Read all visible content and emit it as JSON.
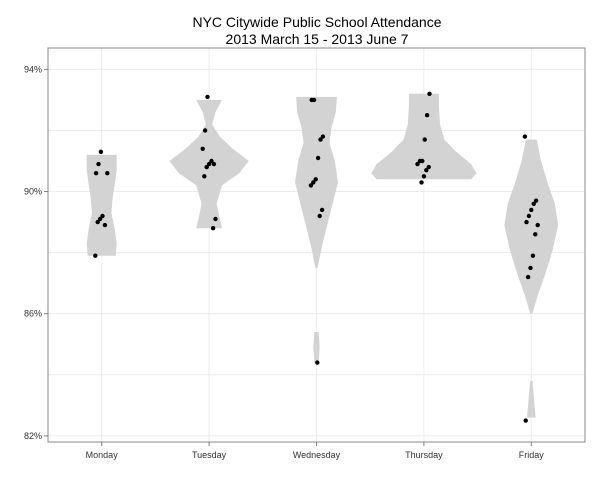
{
  "chart_data": {
    "type": "violin",
    "title": "NYC Citywide Public School Attendance",
    "subtitle": "2013 March 15 - 2013 June 7",
    "xlabel": "",
    "ylabel": "",
    "categories": [
      "Monday",
      "Tuesday",
      "Wednesday",
      "Thursday",
      "Friday"
    ],
    "y_range": [
      81.8,
      94.7
    ],
    "y_ticks": [
      82,
      86,
      90,
      94
    ],
    "y_tick_labels": [
      "82%",
      "86%",
      "90%",
      "94%"
    ],
    "grid": true,
    "colors": {
      "violin_fill": "#d3d3d3",
      "point": "#000000",
      "background": "#ffffff",
      "grid": "#ececec",
      "border": "#8a8a8a"
    },
    "violins": [
      {
        "category": "Monday",
        "profile": [
          {
            "y": 87.9,
            "w": 0.13
          },
          {
            "y": 88.3,
            "w": 0.14
          },
          {
            "y": 88.8,
            "w": 0.12
          },
          {
            "y": 89.3,
            "w": 0.09
          },
          {
            "y": 89.7,
            "w": 0.1
          },
          {
            "y": 90.2,
            "w": 0.12
          },
          {
            "y": 90.7,
            "w": 0.14
          },
          {
            "y": 91.2,
            "w": 0.14
          }
        ],
        "points": [
          87.9,
          89.0,
          89.1,
          89.2,
          88.9,
          90.6,
          90.6,
          90.9,
          91.3
        ]
      },
      {
        "category": "Tuesday",
        "profile": [
          {
            "y": 88.8,
            "w": 0.12
          },
          {
            "y": 89.1,
            "w": 0.1
          },
          {
            "y": 89.6,
            "w": 0.07
          },
          {
            "y": 90.2,
            "w": 0.12
          },
          {
            "y": 90.6,
            "w": 0.28
          },
          {
            "y": 91.0,
            "w": 0.37
          },
          {
            "y": 91.4,
            "w": 0.22
          },
          {
            "y": 91.8,
            "w": 0.1
          },
          {
            "y": 92.2,
            "w": 0.03
          },
          {
            "y": 92.6,
            "w": 0.06
          },
          {
            "y": 93.0,
            "w": 0.12
          }
        ],
        "points": [
          88.8,
          89.1,
          90.5,
          90.8,
          90.9,
          91.0,
          90.9,
          91.4,
          92.0,
          93.1
        ]
      },
      {
        "category": "Wednesday",
        "profile": [
          {
            "y": 84.4,
            "w": 0.02
          },
          {
            "y": 84.9,
            "w": 0.03
          },
          {
            "y": 85.4,
            "w": 0.02
          },
          {
            "y": null,
            "w": 0
          },
          {
            "y": 87.5,
            "w": 0.01
          },
          {
            "y": 88.2,
            "w": 0.05
          },
          {
            "y": 88.9,
            "w": 0.1
          },
          {
            "y": 89.6,
            "w": 0.15
          },
          {
            "y": 90.3,
            "w": 0.2
          },
          {
            "y": 91.0,
            "w": 0.17
          },
          {
            "y": 91.6,
            "w": 0.12
          },
          {
            "y": 92.1,
            "w": 0.14
          },
          {
            "y": 92.6,
            "w": 0.18
          },
          {
            "y": 93.1,
            "w": 0.19
          }
        ],
        "points": [
          84.4,
          89.2,
          89.4,
          90.2,
          90.3,
          90.4,
          91.1,
          91.7,
          91.8,
          93.0,
          93.0
        ]
      },
      {
        "category": "Thursday",
        "profile": [
          {
            "y": 90.4,
            "w": 0.44
          },
          {
            "y": 90.6,
            "w": 0.49
          },
          {
            "y": 90.9,
            "w": 0.44
          },
          {
            "y": 91.3,
            "w": 0.3
          },
          {
            "y": 91.7,
            "w": 0.19
          },
          {
            "y": 92.2,
            "w": 0.15
          },
          {
            "y": 92.8,
            "w": 0.14
          },
          {
            "y": 93.2,
            "w": 0.14
          }
        ],
        "points": [
          90.3,
          90.5,
          90.7,
          90.8,
          90.9,
          91.0,
          91.0,
          91.7,
          92.5,
          93.2
        ]
      },
      {
        "category": "Friday",
        "profile": [
          {
            "y": 82.6,
            "w": 0.04
          },
          {
            "y": 83.0,
            "w": 0.03
          },
          {
            "y": 83.8,
            "w": 0.01
          },
          {
            "y": null,
            "w": 0
          },
          {
            "y": 86.0,
            "w": 0.01
          },
          {
            "y": 86.6,
            "w": 0.06
          },
          {
            "y": 87.3,
            "w": 0.13
          },
          {
            "y": 88.1,
            "w": 0.2
          },
          {
            "y": 88.9,
            "w": 0.25
          },
          {
            "y": 89.6,
            "w": 0.22
          },
          {
            "y": 90.3,
            "w": 0.15
          },
          {
            "y": 91.0,
            "w": 0.09
          },
          {
            "y": 91.7,
            "w": 0.05
          }
        ],
        "points": [
          82.5,
          87.2,
          87.5,
          87.9,
          88.6,
          88.9,
          89.0,
          89.2,
          89.4,
          89.6,
          89.7,
          91.8
        ]
      }
    ]
  }
}
